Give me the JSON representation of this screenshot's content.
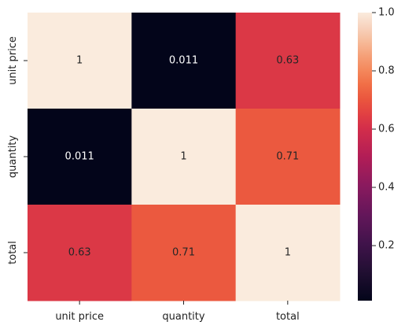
{
  "chart_data": {
    "type": "heatmap",
    "title": "",
    "xlabel": "",
    "ylabel": "",
    "row_labels": [
      "unit price",
      "quantity",
      "total"
    ],
    "col_labels": [
      "unit price",
      "quantity",
      "total"
    ],
    "values": [
      [
        1.0,
        0.011,
        0.63
      ],
      [
        0.011,
        1.0,
        0.71
      ],
      [
        0.63,
        0.71,
        1.0
      ]
    ],
    "annotations": [
      [
        "1",
        "0.011",
        "0.63"
      ],
      [
        "0.011",
        "1",
        "0.71"
      ],
      [
        "0.63",
        "0.71",
        "1"
      ]
    ],
    "colormap": "rocket",
    "vmin": 0.011,
    "vmax": 1.0,
    "colorbar": {
      "ticks": [
        0.2,
        0.4,
        0.6,
        0.8,
        1.0
      ],
      "tick_labels": [
        "0.2",
        "0.4",
        "0.6",
        "0.8",
        "1.0"
      ]
    },
    "annotation_colors": {
      "light_bg": "#262626",
      "dark_bg": "#ffffff"
    }
  }
}
